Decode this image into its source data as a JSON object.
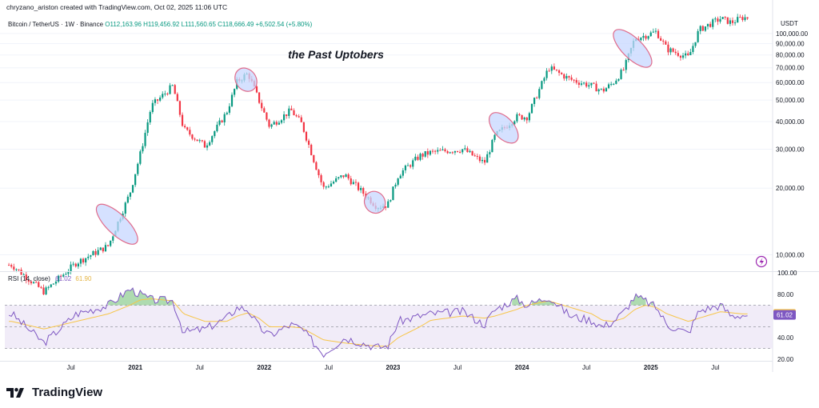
{
  "header": {
    "credit": "chryzano_ariston created with TradingView.com, Oct 02, 2025 11:06 UTC",
    "symbol": "Bitcoin / TetherUS · 1W · Binance",
    "ohlc": "O112,163.96 H119,456.92 L111,560.65 C118,666.49 +6,502.54 (+5.80%)"
  },
  "annotation": "the Past Uptobers",
  "rsi_label": "RSI (14, close)",
  "rsi_value": "61.02",
  "rsi_ma_value": "61.90",
  "currency": "USDT",
  "brand": "TradingView",
  "icon_names": [
    "tradingview-logo-icon",
    "lightning-icon"
  ],
  "colors": {
    "up": "#089981",
    "down": "#f23645",
    "rsi": "#7e57c2",
    "rsi_ma": "#f7c548",
    "highlight": "#c7d7ff",
    "highlight_border": "#e06b8b"
  },
  "chart_data": [
    {
      "type": "candlestick",
      "title": "Bitcoin / TetherUS · 1W · Binance",
      "scale": "log",
      "ylim": [
        8500,
        122000
      ],
      "y_ticks": [
        "10,000.00",
        "20,000.00",
        "30,000.00",
        "40,000.00",
        "50,000.00",
        "60,000.00",
        "70,000.00",
        "80,000.00",
        "90,000.00",
        "100,000.00"
      ],
      "x_ticks": [
        "Jul",
        "2021",
        "Jul",
        "2022",
        "Jul",
        "2023",
        "Jul",
        "2024",
        "Jul",
        "2025",
        "Jul"
      ],
      "path_x": [
        "2020-01",
        "2020-04",
        "2020-07",
        "2020-10",
        "2020-12",
        "2021-01",
        "2021-02",
        "2021-04",
        "2021-05",
        "2021-07",
        "2021-09",
        "2021-10",
        "2021-11",
        "2021-12",
        "2022-01",
        "2022-03",
        "2022-04",
        "2022-06",
        "2022-08",
        "2022-11",
        "2022-12",
        "2023-01",
        "2023-03",
        "2023-04",
        "2023-07",
        "2023-09",
        "2023-10",
        "2023-12",
        "2024-01",
        "2024-03",
        "2024-05",
        "2024-07",
        "2024-08",
        "2024-09",
        "2024-10",
        "2024-11",
        "2024-12",
        "2025-01",
        "2025-02",
        "2025-04",
        "2025-05",
        "2025-07",
        "2025-08",
        "2025-09"
      ],
      "path_y": [
        9000,
        6800,
        9200,
        11000,
        19000,
        29000,
        47000,
        58000,
        37000,
        31000,
        44000,
        61000,
        66000,
        50000,
        38000,
        45000,
        39000,
        20000,
        23000,
        16500,
        16800,
        23000,
        28000,
        29000,
        30000,
        26000,
        34500,
        42000,
        42000,
        70000,
        62000,
        58000,
        55000,
        60000,
        69000,
        95000,
        98000,
        102000,
        85000,
        78000,
        104000,
        117000,
        112000,
        118000
      ],
      "highlights": [
        "Oct 2020",
        "Oct 2021",
        "Oct 2022",
        "Oct 2023",
        "Oct 2024"
      ]
    },
    {
      "type": "line",
      "title": "RSI (14, close)",
      "ylim": [
        20,
        100
      ],
      "y_ticks": [
        "100.00",
        "80.00",
        "40.00",
        "20.00"
      ],
      "bands": [
        70,
        50,
        30
      ],
      "x": [
        "2020-01",
        "2020-04",
        "2020-07",
        "2020-10",
        "2020-12",
        "2021-01",
        "2021-02",
        "2021-04",
        "2021-05",
        "2021-07",
        "2021-09",
        "2021-10",
        "2021-11",
        "2021-12",
        "2022-01",
        "2022-03",
        "2022-04",
        "2022-06",
        "2022-08",
        "2022-11",
        "2022-12",
        "2023-01",
        "2023-03",
        "2023-04",
        "2023-07",
        "2023-09",
        "2023-10",
        "2023-12",
        "2024-01",
        "2024-03",
        "2024-05",
        "2024-07",
        "2024-08",
        "2024-09",
        "2024-10",
        "2024-11",
        "2024-12",
        "2025-01",
        "2025-02",
        "2025-04",
        "2025-05",
        "2025-07",
        "2025-08",
        "2025-09"
      ],
      "series": [
        {
          "name": "RSI",
          "values": [
            62,
            35,
            62,
            70,
            85,
            80,
            75,
            74,
            45,
            48,
            58,
            68,
            66,
            50,
            42,
            52,
            48,
            25,
            40,
            31,
            32,
            55,
            60,
            62,
            64,
            52,
            66,
            76,
            70,
            78,
            60,
            56,
            50,
            55,
            64,
            78,
            74,
            68,
            52,
            44,
            65,
            70,
            60,
            61.02
          ]
        },
        {
          "name": "RSI MA",
          "values": [
            55,
            48,
            55,
            62,
            70,
            75,
            76,
            74,
            62,
            55,
            55,
            60,
            63,
            58,
            50,
            50,
            49,
            38,
            35,
            32,
            32,
            40,
            50,
            56,
            60,
            58,
            60,
            66,
            70,
            74,
            68,
            62,
            56,
            55,
            58,
            66,
            70,
            68,
            62,
            55,
            58,
            64,
            63,
            61.9
          ]
        }
      ]
    }
  ]
}
